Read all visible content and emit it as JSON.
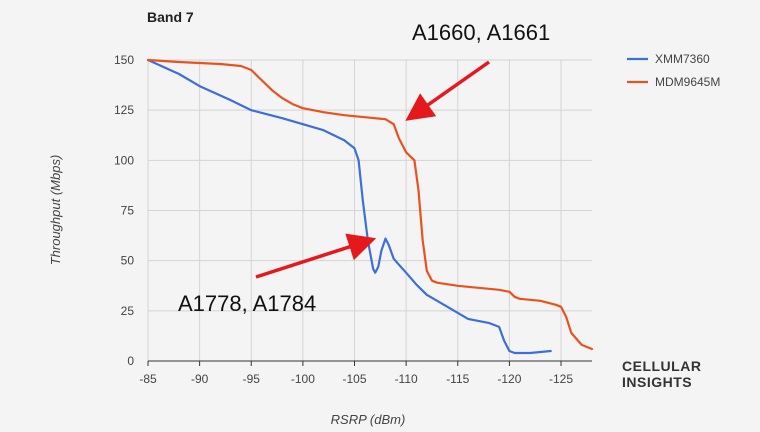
{
  "brand": {
    "line1": "CELLULAR",
    "line2": "INSIGHTS"
  },
  "colors": {
    "XMM7360": "#3c6fd8",
    "MDM9645M": "#e8521e",
    "arrow": "#e5181c",
    "grid": "#d4d4d4"
  },
  "chart_data": {
    "type": "line",
    "title": "Band 7",
    "xlabel": "RSRP (dBm)",
    "ylabel": "Throughput (Mbps)",
    "xlim": [
      -85,
      -128
    ],
    "ylim": [
      0,
      150
    ],
    "x_ticks": [
      "-85",
      "-90",
      "-95",
      "-100",
      "-105",
      "-110",
      "-115",
      "-120",
      "-125"
    ],
    "y_ticks": [
      "0",
      "25",
      "50",
      "75",
      "100",
      "125",
      "150"
    ],
    "grid": true,
    "legend": "right",
    "series": [
      {
        "name": "XMM7360",
        "x": [
          -85,
          -88,
          -90,
          -93,
          -95,
          -98,
          -100,
          -102,
          -104,
          -105,
          -105.4,
          -105.8,
          -106.3,
          -106.8,
          -107,
          -107.3,
          -107.6,
          -108,
          -108.3,
          -108.8,
          -109.3,
          -110,
          -111,
          -112,
          -114,
          -116,
          -118,
          -119,
          -119.5,
          -120,
          -120.5,
          -121,
          -122,
          -123,
          -124
        ],
        "y": [
          150,
          143,
          137,
          130,
          125,
          121,
          118,
          115,
          110,
          106,
          100,
          80,
          60,
          46,
          44,
          47,
          55,
          61,
          58,
          51,
          48,
          44,
          38,
          33,
          27,
          21,
          19,
          17,
          10,
          5,
          4,
          4,
          4,
          4.5,
          5
        ]
      },
      {
        "name": "MDM9645M",
        "x": [
          -85,
          -88,
          -92,
          -94,
          -95,
          -96,
          -97,
          -98,
          -99,
          -100,
          -102,
          -104,
          -106,
          -108,
          -108.8,
          -109.3,
          -110,
          -110.8,
          -111.2,
          -111.6,
          -112,
          -112.5,
          -113,
          -115,
          -117,
          -119,
          -120,
          -120.5,
          -121,
          -123,
          -124.5,
          -125,
          -125.5,
          -126,
          -127,
          -128
        ],
        "y": [
          150,
          149,
          148,
          147,
          145,
          140,
          135,
          131,
          128,
          126,
          124,
          122.5,
          121.5,
          120.5,
          118,
          111,
          104,
          100,
          85,
          60,
          45,
          40,
          39,
          37.5,
          36.5,
          35.5,
          34.5,
          32,
          31,
          30,
          28,
          27,
          22,
          14,
          8,
          6
        ]
      }
    ],
    "annotations": [
      {
        "label": "A1660, A1661",
        "points_to": [
          -110,
          120
        ]
      },
      {
        "label": "A1778, A1784",
        "points_to": [
          -107,
          61
        ]
      }
    ]
  }
}
